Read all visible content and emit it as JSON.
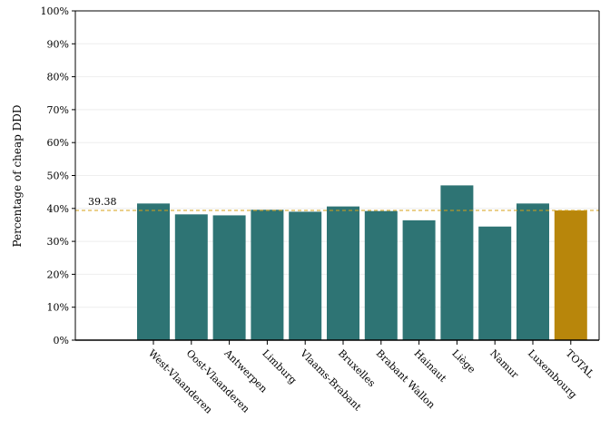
{
  "chart_data": {
    "type": "bar",
    "title": "",
    "xlabel": "",
    "ylabel": "Percentage of cheap DDD",
    "ylim": [
      0,
      100
    ],
    "yticks": [
      0,
      10,
      20,
      30,
      40,
      50,
      60,
      70,
      80,
      90,
      100
    ],
    "ytick_labels": [
      "0%",
      "10%",
      "20%",
      "30%",
      "40%",
      "50%",
      "60%",
      "70%",
      "80%",
      "90%",
      "100%"
    ],
    "categories": [
      "West-Vlaanderen",
      "Oost-Vlaanderen",
      "Antwerpen",
      "Limburg",
      "Vlaams-Brabant",
      "Bruxelles",
      "Brabant Wallon",
      "Hainaut",
      "Liège",
      "Namur",
      "Luxembourg",
      "TOTAL"
    ],
    "values": [
      41.5,
      38.2,
      37.9,
      39.6,
      39.0,
      40.6,
      39.2,
      36.4,
      47.0,
      34.5,
      41.5,
      39.38
    ],
    "bar_colors": [
      "#2e7474",
      "#2e7474",
      "#2e7474",
      "#2e7474",
      "#2e7474",
      "#2e7474",
      "#2e7474",
      "#2e7474",
      "#2e7474",
      "#2e7474",
      "#2e7474",
      "#b8860b"
    ],
    "reference_line": {
      "value": 39.38,
      "label": "39.38",
      "color": "#d4a017",
      "style": "dashed"
    },
    "grid": true
  }
}
